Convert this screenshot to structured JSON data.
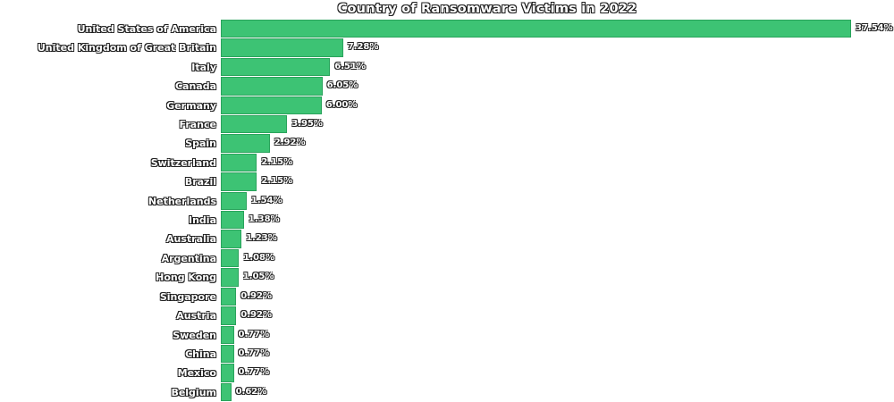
{
  "title": "Country of Ransomware Victims in 2022",
  "colors": {
    "bar_fill": "#3dc374",
    "bar_edge": "#2aa35c",
    "label_fill": "#ffffff",
    "label_outline": "#1e1e1e",
    "background": "#ffffff"
  },
  "chart_data": {
    "type": "bar",
    "orientation": "horizontal",
    "title": "Country of Ransomware Victims in 2022",
    "xlabel": "",
    "ylabel": "",
    "xlim": [
      0,
      40
    ],
    "grid": false,
    "legend": false,
    "value_unit": "%",
    "categories": [
      "United States of America",
      "United Kingdom of Great Britain",
      "Italy",
      "Canada",
      "Germany",
      "France",
      "Spain",
      "Switzerland",
      "Brazil",
      "Netherlands",
      "India",
      "Australia",
      "Argentina",
      "Hong Kong",
      "Singapore",
      "Austria",
      "Sweden",
      "China",
      "Mexico",
      "Belgium"
    ],
    "values": [
      37.54,
      7.28,
      6.51,
      6.05,
      6.0,
      3.95,
      2.92,
      2.15,
      2.15,
      1.54,
      1.38,
      1.23,
      1.08,
      1.05,
      0.92,
      0.92,
      0.77,
      0.77,
      0.77,
      0.62
    ],
    "value_labels": [
      "37.54%",
      "7.28%",
      "6.51%",
      "6.05%",
      "6.00%",
      "3.95%",
      "2.92%",
      "2.15%",
      "2.15%",
      "1.54%",
      "1.38%",
      "1.23%",
      "1.08%",
      "1.05%",
      "0.92%",
      "0.92%",
      "0.77%",
      "0.77%",
      "0.77%",
      "0.62%"
    ]
  }
}
